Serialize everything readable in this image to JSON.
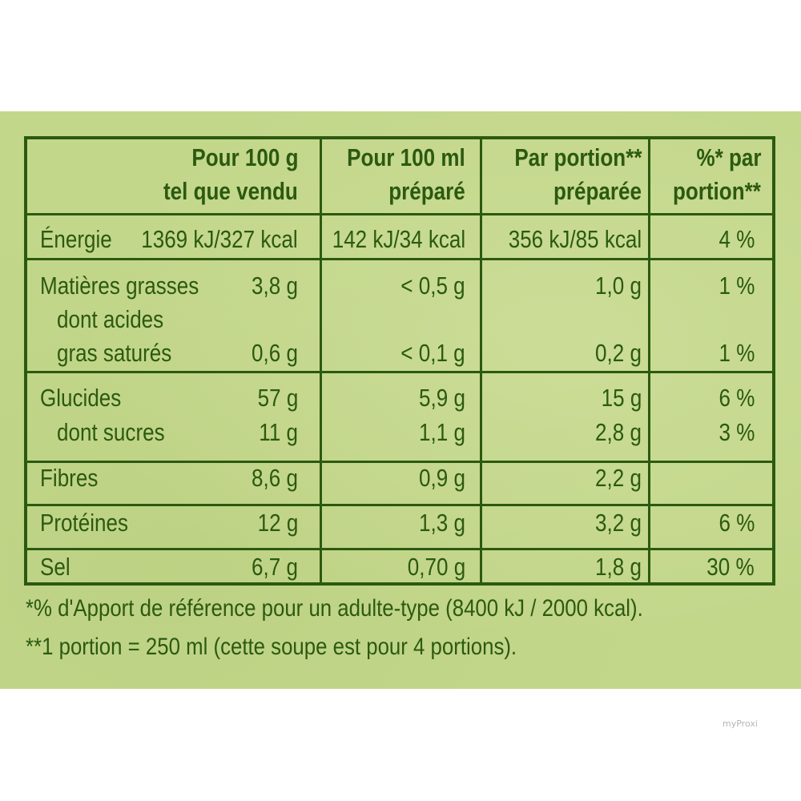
{
  "headers": [
    {
      "line1": "Pour 100 g",
      "line2": "tel que vendu"
    },
    {
      "line1": "Pour 100 ml",
      "line2": "préparé"
    },
    {
      "line1": "Par portion**",
      "line2": "préparée"
    },
    {
      "line1": "%* par",
      "line2": "portion**"
    }
  ],
  "rows": {
    "energie": {
      "label": "Énergie",
      "v100g": "1369 kJ/327 kcal",
      "v100ml": "142 kJ/34 kcal",
      "portion": "356 kJ/85 kcal",
      "ri": "4 %"
    },
    "matieres": {
      "label": "Matières grasses",
      "v100g": "3,8 g",
      "v100ml": "< 0,5 g",
      "portion": "1,0 g",
      "ri": "1 %"
    },
    "satures": {
      "label_line1": "dont acides",
      "label_line2": "gras saturés",
      "v100g": "0,6 g",
      "v100ml": "< 0,1 g",
      "portion": "0,2 g",
      "ri": "1 %"
    },
    "glucides": {
      "label": "Glucides",
      "v100g": "57 g",
      "v100ml": "5,9 g",
      "portion": "15 g",
      "ri": "6 %"
    },
    "sucres": {
      "label": "dont sucres",
      "v100g": "11 g",
      "v100ml": "1,1 g",
      "portion": "2,8 g",
      "ri": "3 %"
    },
    "fibres": {
      "label": "Fibres",
      "v100g": "8,6 g",
      "v100ml": "0,9 g",
      "portion": "2,2 g",
      "ri": ""
    },
    "proteines": {
      "label": "Protéines",
      "v100g": "12 g",
      "v100ml": "1,3 g",
      "portion": "3,2 g",
      "ri": "6 %"
    },
    "sel": {
      "label": "Sel",
      "v100g": "6,7 g",
      "v100ml": "0,70 g",
      "portion": "1,8 g",
      "ri": "30 %"
    }
  },
  "footnotes": {
    "line1": "*% d'Apport de référence pour un adulte-type (8400 kJ / 2000 kcal).",
    "line2": "**1 portion = 250 ml (cette soupe est pour 4 portions)."
  },
  "watermark": "myProxi",
  "colors": {
    "panel": "#c3d78b",
    "ink": "#2b5a10"
  }
}
